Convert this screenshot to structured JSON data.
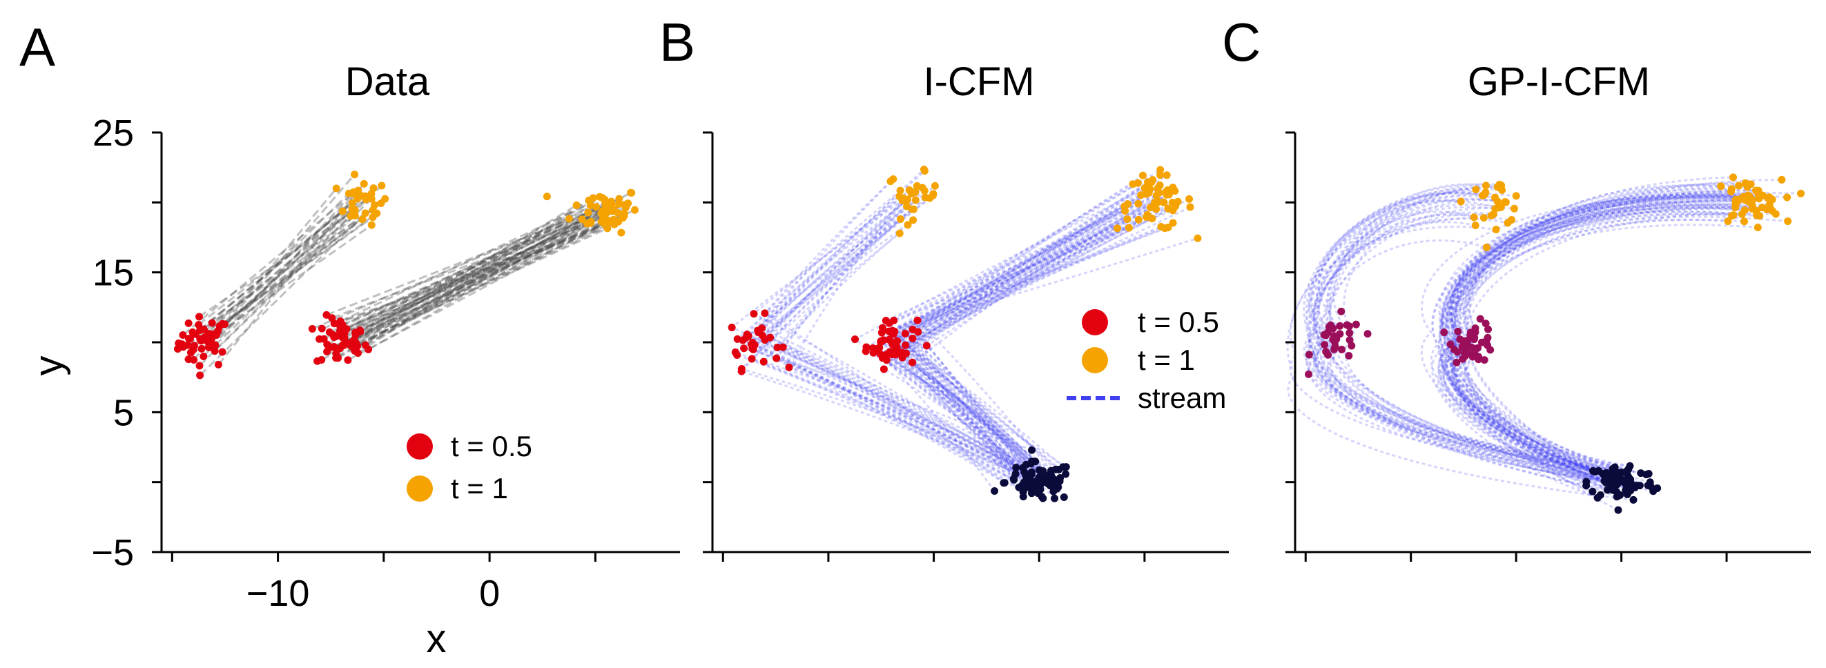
{
  "figure": {
    "panels": [
      {
        "letter": "A",
        "title": "Data"
      },
      {
        "letter": "B",
        "title": "I-CFM"
      },
      {
        "letter": "C",
        "title": "GP-I-CFM"
      }
    ],
    "axes": {
      "xlabel": "x",
      "ylabel": "y"
    },
    "legend": {
      "t05": "t = 0.5",
      "t1": "t = 1",
      "stream": "stream"
    }
  },
  "colors": {
    "t0": "#0b0b3b",
    "t05": "#e3000f",
    "t05_overlay": "#9b0f5a",
    "t1": "#f5a300",
    "data_lines": "#4a4a4a",
    "stream": "#4040f0"
  },
  "chart_data": [
    {
      "type": "scatter",
      "panel": "A",
      "title": "Data",
      "xlabel": "x",
      "ylabel": "y",
      "xlim": [
        -15.5,
        9
      ],
      "ylim": [
        -5,
        25
      ],
      "xticks": [
        -15,
        -10,
        -5,
        0,
        5
      ],
      "xtick_labels": [
        "",
        "−10",
        "",
        "0",
        ""
      ],
      "yticks": [
        -5,
        0,
        5,
        10,
        15,
        20,
        25
      ],
      "ytick_labels": [
        "−5",
        "",
        "5",
        "",
        "15",
        "",
        "25"
      ],
      "legend_position": "lower-right",
      "clusters": [
        {
          "label": "t = 0.5",
          "center": [
            -13.5,
            10
          ],
          "spread": [
            0.6,
            0.9
          ],
          "n": 45
        },
        {
          "label": "t = 1",
          "center": [
            -6,
            20
          ],
          "spread": [
            0.6,
            0.8
          ],
          "n": 30
        },
        {
          "label": "t = 0.5",
          "center": [
            -7,
            10
          ],
          "spread": [
            0.6,
            0.9
          ],
          "n": 50
        },
        {
          "label": "t = 1",
          "center": [
            5.5,
            19.5
          ],
          "spread": [
            0.8,
            0.8
          ],
          "n": 55
        }
      ],
      "line_segments": [
        {
          "from": [
            -13.5,
            10
          ],
          "to": [
            -6,
            20
          ],
          "n": 30,
          "style": "dashed",
          "color": "gray"
        },
        {
          "from": [
            -7,
            10
          ],
          "to": [
            5.5,
            19.5
          ],
          "n": 55,
          "style": "dashed",
          "color": "gray"
        }
      ]
    },
    {
      "type": "scatter",
      "panel": "B",
      "title": "I-CFM",
      "xlim": [
        -15.5,
        9
      ],
      "ylim": [
        -5,
        25
      ],
      "legend_position": "center-right",
      "clusters": [
        {
          "label": "t = 0.5",
          "center": [
            -13.5,
            10
          ],
          "spread": [
            0.6,
            0.9
          ],
          "n": 30
        },
        {
          "label": "t = 0.5",
          "center": [
            -7,
            10
          ],
          "spread": [
            0.6,
            0.9
          ],
          "n": 50
        },
        {
          "label": "t = 1",
          "center": [
            -6,
            20.5
          ],
          "spread": [
            0.6,
            0.8
          ],
          "n": 30
        },
        {
          "label": "t = 1",
          "center": [
            5.5,
            20
          ],
          "spread": [
            0.9,
            1.0
          ],
          "n": 55
        },
        {
          "label": "t = 0",
          "center": [
            0,
            0
          ],
          "spread": [
            0.8,
            0.7
          ],
          "n": 80
        }
      ],
      "streams": [
        {
          "from": [
            0,
            0
          ],
          "via": [
            -13.5,
            10
          ],
          "to": [
            -6,
            20.5
          ],
          "n": 30,
          "shape": "straight-kink"
        },
        {
          "from": [
            0,
            0
          ],
          "via": [
            -7,
            10
          ],
          "to": [
            5.5,
            20
          ],
          "n": 55,
          "shape": "straight-kink"
        }
      ]
    },
    {
      "type": "scatter",
      "panel": "C",
      "title": "GP-I-CFM",
      "xlim": [
        -15.5,
        9
      ],
      "ylim": [
        -5,
        25
      ],
      "clusters": [
        {
          "label": "t = 0.5",
          "center": [
            -13.5,
            10
          ],
          "spread": [
            0.6,
            0.9
          ],
          "n": 30
        },
        {
          "label": "t = 0.5",
          "center": [
            -7,
            10
          ],
          "spread": [
            0.5,
            0.7
          ],
          "n": 45
        },
        {
          "label": "t = 1",
          "center": [
            -6,
            20
          ],
          "spread": [
            0.7,
            0.8
          ],
          "n": 30
        },
        {
          "label": "t = 1",
          "center": [
            6,
            20
          ],
          "spread": [
            0.8,
            0.8
          ],
          "n": 55
        },
        {
          "label": "t = 0",
          "center": [
            0,
            0
          ],
          "spread": [
            0.8,
            0.7
          ],
          "n": 80
        }
      ],
      "streams": [
        {
          "from": [
            0,
            0
          ],
          "via": [
            -13.5,
            10
          ],
          "to": [
            -6,
            20
          ],
          "n": 30,
          "shape": "smooth-arc"
        },
        {
          "from": [
            0,
            0
          ],
          "via": [
            -7,
            10
          ],
          "to": [
            6,
            20
          ],
          "n": 55,
          "shape": "smooth-arc"
        }
      ]
    }
  ]
}
